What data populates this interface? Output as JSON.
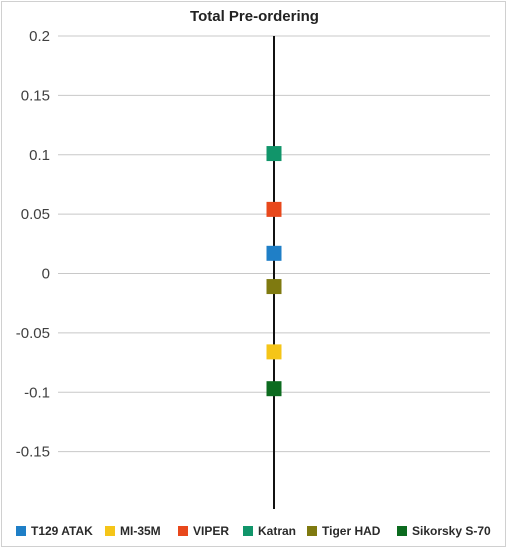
{
  "chart_data": {
    "type": "scatter",
    "title": "Total Pre-ordering",
    "xlabel": "",
    "ylabel": "",
    "ylim": [
      -0.2,
      0.2
    ],
    "yticks": [
      "0.2",
      "0.15",
      "0.1",
      "0.05",
      "0",
      "-0.05",
      "-0.1",
      "-0.15"
    ],
    "grid": true,
    "legend_position": "bottom",
    "series": [
      {
        "name": "T129 ATAK",
        "y": 0.017,
        "color": "#1f7fc7"
      },
      {
        "name": "MI-35M",
        "y": -0.066,
        "color": "#f5c518"
      },
      {
        "name": "VIPER",
        "y": 0.054,
        "color": "#e8481c"
      },
      {
        "name": "Katran",
        "y": 0.101,
        "color": "#11956a"
      },
      {
        "name": "Tiger HAD",
        "y": -0.011,
        "color": "#7f7a10"
      },
      {
        "name": "Sikorsky S-70",
        "y": -0.097,
        "color": "#0c6b1f"
      }
    ]
  }
}
